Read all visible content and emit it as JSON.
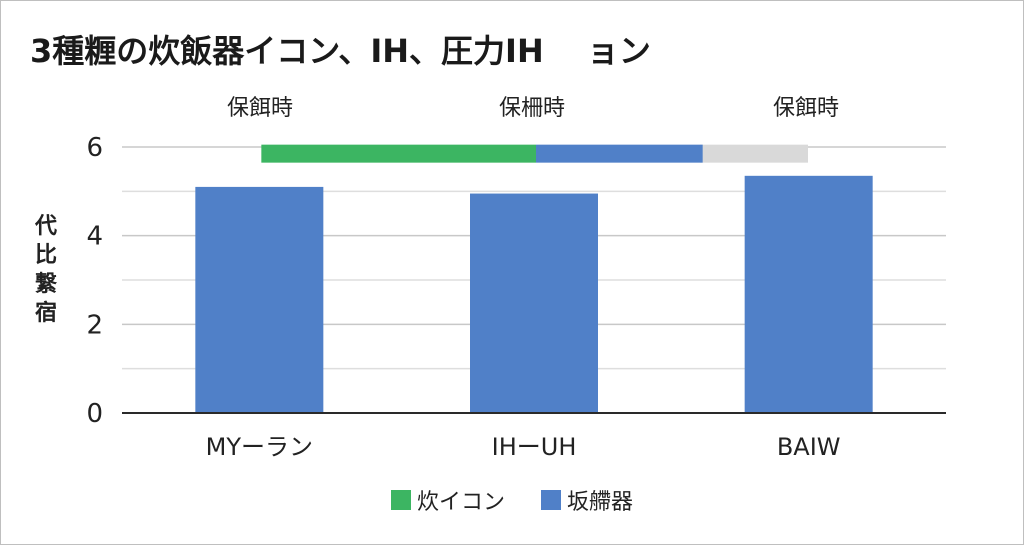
{
  "chart_data": {
    "type": "bar",
    "title": "3種糎の炊飯器イコン、IH、圧力IH　 ョン",
    "ylabel": "代比繋宿",
    "categories": [
      "MYーラン",
      "IHーUH",
      "BAIW"
    ],
    "category_top_labels": [
      "保餌時",
      "保柵時",
      "保餌時"
    ],
    "ylim": [
      0,
      6
    ],
    "yticks": [
      0,
      2,
      4,
      6
    ],
    "grid": true,
    "legend_position": "bottom",
    "series": [
      {
        "name": "炊イコン",
        "color": "#3cb562",
        "type": "range",
        "ranges": [
          {
            "start": "MYーラン",
            "end": "IHーUH",
            "y": 5.85
          }
        ]
      },
      {
        "name": "坂艜器",
        "color": "#5080c8",
        "values": [
          5.1,
          4.95,
          5.35
        ],
        "overlay_range": {
          "start": "IHーUH",
          "end": "BAIW",
          "y": 5.85
        }
      }
    ],
    "extra_range": {
      "color": "#d9d9d9",
      "y": 5.85
    }
  }
}
